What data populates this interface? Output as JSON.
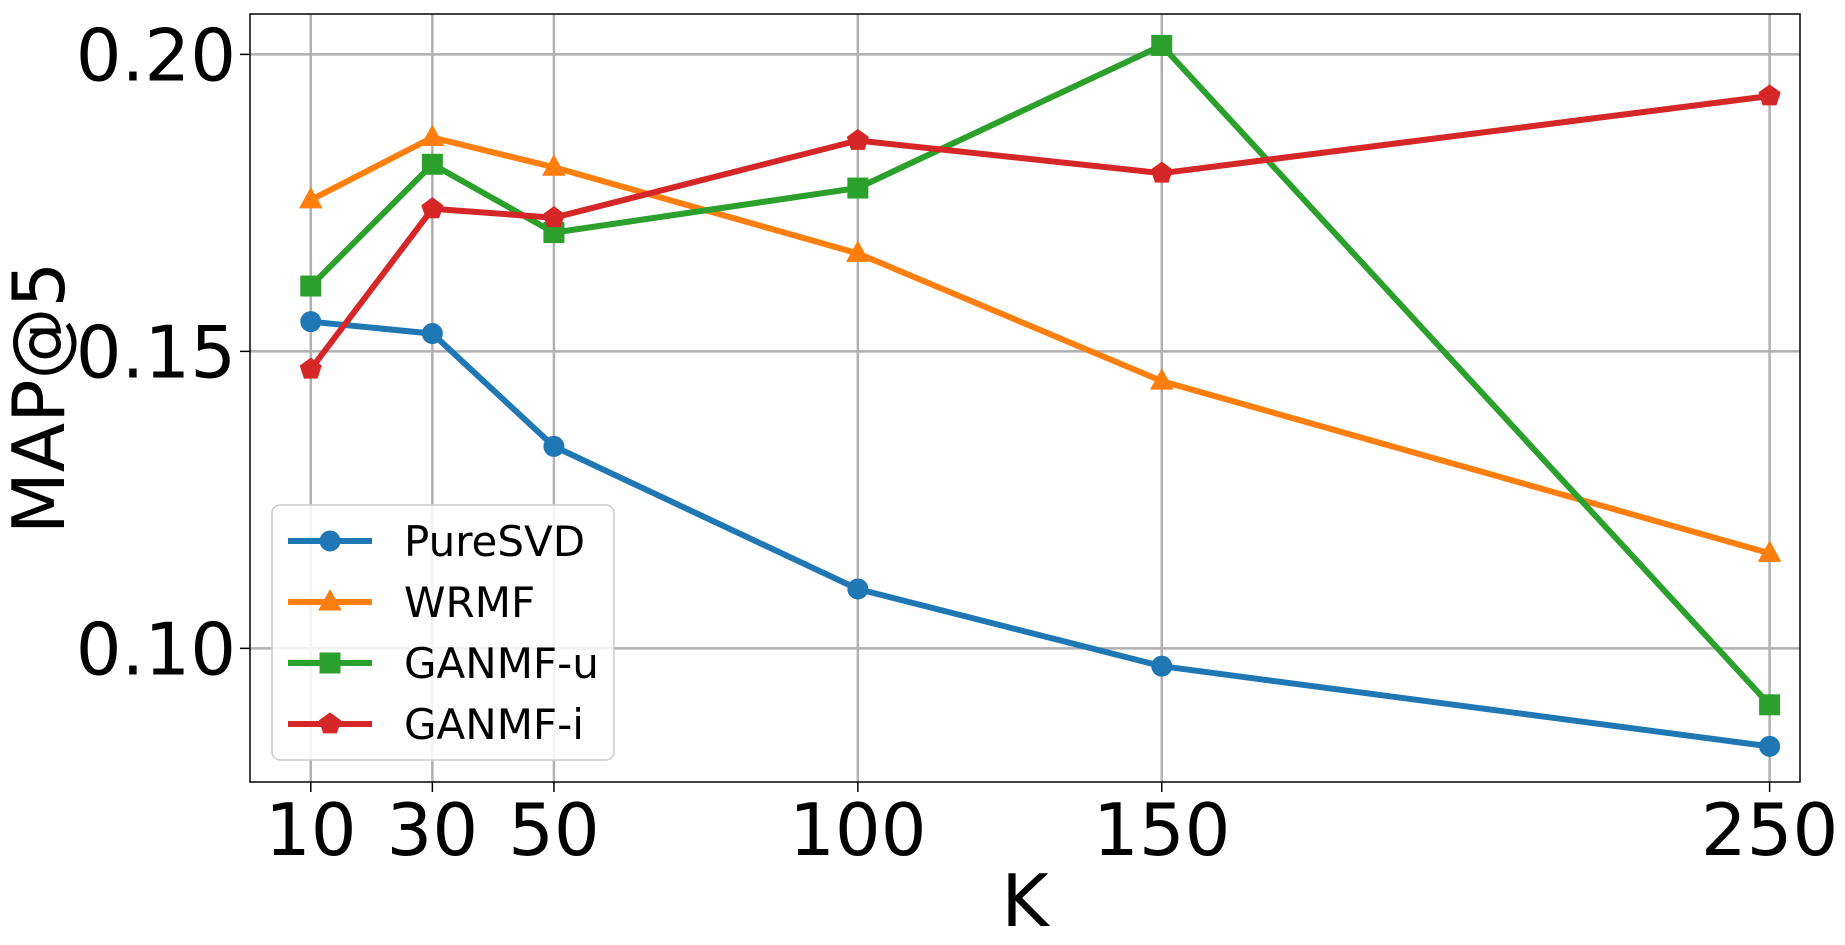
{
  "chart_data": {
    "type": "line",
    "title": "",
    "xlabel": "K",
    "ylabel": "MAP@5",
    "x": [
      10,
      30,
      50,
      100,
      150,
      250
    ],
    "xticks": [
      10,
      30,
      50,
      100,
      150,
      250
    ],
    "xtick_labels": [
      "10",
      "30",
      "50",
      "100",
      "150",
      "250"
    ],
    "xlim": [
      0,
      255
    ],
    "yticks": [
      0.1,
      0.15,
      0.2
    ],
    "ytick_labels": [
      "0.10",
      "0.15",
      "0.20"
    ],
    "ylim": [
      0.0775,
      0.2068
    ],
    "grid": true,
    "legend_position": "lower-left",
    "series": [
      {
        "name": "PureSVD",
        "color": "#1f77b4",
        "marker": "circle",
        "values": [
          0.155,
          0.153,
          0.134,
          0.11,
          0.097,
          0.0835
        ]
      },
      {
        "name": "WRMF",
        "color": "#ff7f0e",
        "marker": "triangle",
        "values": [
          0.1755,
          0.186,
          0.181,
          0.1665,
          0.145,
          0.116
        ]
      },
      {
        "name": "GANMF-u",
        "color": "#2ca02c",
        "marker": "square",
        "values": [
          0.161,
          0.1815,
          0.17,
          0.1775,
          0.2015,
          0.0905
        ]
      },
      {
        "name": "GANMF-i",
        "color": "#d62728",
        "marker": "pentagon",
        "values": [
          0.147,
          0.174,
          0.1725,
          0.1855,
          0.18,
          0.193
        ]
      }
    ]
  }
}
